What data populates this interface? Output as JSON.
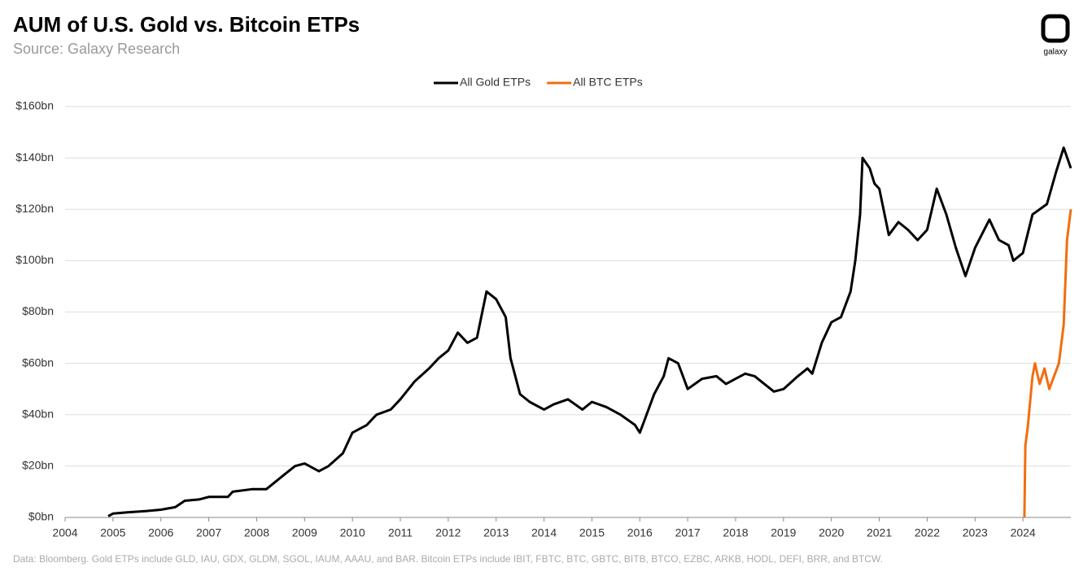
{
  "chart_data": {
    "type": "line",
    "title": "AUM of U.S. Gold vs. Bitcoin ETPs",
    "subtitle": "Source: Galaxy Research",
    "footnote": "Data: Bloomberg. Gold ETPs include GLD, IAU, GDX, GLDM, SGOL, IAUM, AAAU, and BAR. Bitcoin ETPs include IBIT, FBTC, BTC, GBTC, BITB, BTCO, EZBC, ARKB, HODL, DEFI, BRR, and BTCW.",
    "logo": "galaxy",
    "xlim": [
      2004,
      2025
    ],
    "xticks": [
      2004,
      2005,
      2006,
      2007,
      2008,
      2009,
      2010,
      2011,
      2012,
      2013,
      2014,
      2015,
      2016,
      2017,
      2018,
      2019,
      2020,
      2021,
      2022,
      2023,
      2024
    ],
    "ylim": [
      0,
      160
    ],
    "yticks": [
      {
        "value": 0,
        "label": "$0bn"
      },
      {
        "value": 20,
        "label": "$20bn"
      },
      {
        "value": 40,
        "label": "$40bn"
      },
      {
        "value": 60,
        "label": "$60bn"
      },
      {
        "value": 80,
        "label": "$80bn"
      },
      {
        "value": 100,
        "label": "$100bn"
      },
      {
        "value": 120,
        "label": "$120bn"
      },
      {
        "value": 140,
        "label": "$140bn"
      },
      {
        "value": 160,
        "label": "$160bn"
      }
    ],
    "grid": true,
    "legend": "top",
    "series": [
      {
        "name": "All Gold ETPs",
        "color": "#000000",
        "x": [
          2004.9,
          2005.0,
          2005.3,
          2005.7,
          2006.0,
          2006.3,
          2006.5,
          2006.8,
          2007.0,
          2007.4,
          2007.5,
          2007.9,
          2008.2,
          2008.4,
          2008.6,
          2008.8,
          2009.0,
          2009.3,
          2009.5,
          2009.8,
          2010.0,
          2010.3,
          2010.5,
          2010.8,
          2011.0,
          2011.3,
          2011.6,
          2011.8,
          2012.0,
          2012.2,
          2012.4,
          2012.6,
          2012.8,
          2013.0,
          2013.2,
          2013.3,
          2013.5,
          2013.7,
          2014.0,
          2014.2,
          2014.5,
          2014.8,
          2015.0,
          2015.3,
          2015.6,
          2015.9,
          2016.0,
          2016.1,
          2016.3,
          2016.5,
          2016.6,
          2016.8,
          2016.9,
          2017.0,
          2017.3,
          2017.6,
          2017.8,
          2018.0,
          2018.2,
          2018.4,
          2018.6,
          2018.8,
          2019.0,
          2019.3,
          2019.5,
          2019.6,
          2019.8,
          2020.0,
          2020.2,
          2020.4,
          2020.5,
          2020.6,
          2020.65,
          2020.8,
          2020.9,
          2021.0,
          2021.2,
          2021.4,
          2021.6,
          2021.8,
          2022.0,
          2022.2,
          2022.4,
          2022.6,
          2022.8,
          2023.0,
          2023.3,
          2023.5,
          2023.7,
          2023.8,
          2024.0,
          2024.2,
          2024.5,
          2024.7,
          2024.85,
          2025.0
        ],
        "values": [
          0.5,
          1.5,
          2,
          2.5,
          3,
          4,
          6.5,
          7,
          8,
          8,
          10,
          11,
          11,
          14,
          17,
          20,
          21,
          18,
          20,
          25,
          33,
          36,
          40,
          42,
          46,
          53,
          58,
          62,
          65,
          72,
          68,
          70,
          88,
          85,
          78,
          62,
          48,
          45,
          42,
          44,
          46,
          42,
          45,
          43,
          40,
          36,
          33,
          38,
          48,
          55,
          62,
          60,
          55,
          50,
          54,
          55,
          52,
          54,
          56,
          55,
          52,
          49,
          50,
          55,
          58,
          56,
          68,
          76,
          78,
          88,
          100,
          118,
          140,
          136,
          130,
          128,
          110,
          115,
          112,
          108,
          112,
          128,
          118,
          105,
          94,
          105,
          116,
          108,
          106,
          100,
          103,
          118,
          122,
          135,
          144,
          136
        ]
      },
      {
        "name": "All BTC ETPs",
        "color": "#f26d0f",
        "x": [
          2024.03,
          2024.05,
          2024.1,
          2024.2,
          2024.25,
          2024.35,
          2024.45,
          2024.55,
          2024.65,
          2024.75,
          2024.85,
          2024.92,
          2025.0
        ],
        "values": [
          0,
          28,
          35,
          55,
          60,
          52,
          58,
          50,
          55,
          60,
          75,
          108,
          120
        ]
      }
    ]
  }
}
